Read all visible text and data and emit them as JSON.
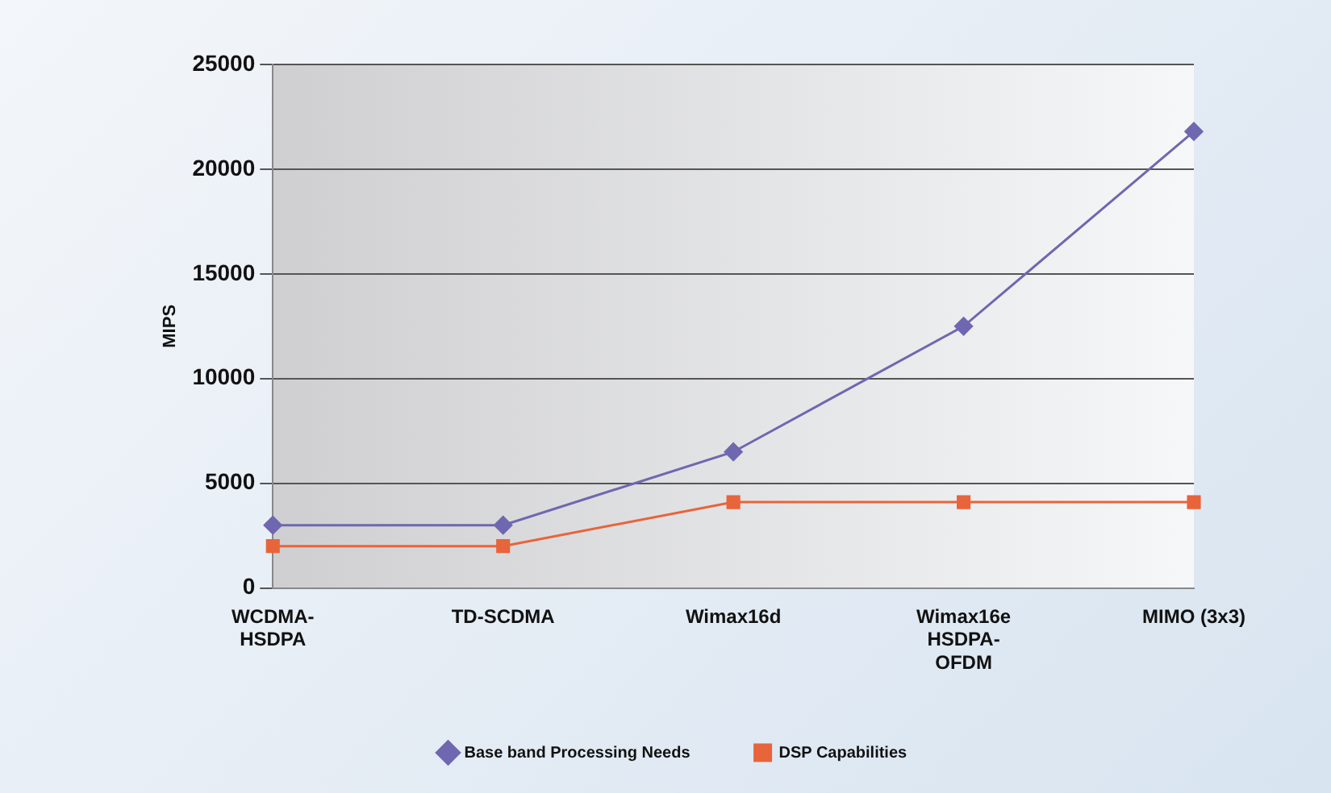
{
  "chart_data": {
    "type": "line",
    "ylabel": "MIPS",
    "categories": [
      "WCDMA-\nHSDPA",
      "TD-SCDMA",
      "Wimax16d",
      "Wimax16e\nHSDPA-\nOFDM",
      "MIMO (3x3)"
    ],
    "series": [
      {
        "name": "Base band Processing Needs",
        "color": "#6f67b0",
        "marker": "diamond",
        "values": [
          3000,
          3000,
          6500,
          12500,
          21800
        ]
      },
      {
        "name": "DSP Capabilities",
        "color": "#e8643a",
        "marker": "square",
        "values": [
          2000,
          2000,
          4100,
          4100,
          4100
        ]
      }
    ],
    "ylim": [
      0,
      25000
    ],
    "yticks": [
      0,
      5000,
      10000,
      15000,
      20000,
      25000
    ],
    "grid": "y",
    "legend": "bottom"
  }
}
